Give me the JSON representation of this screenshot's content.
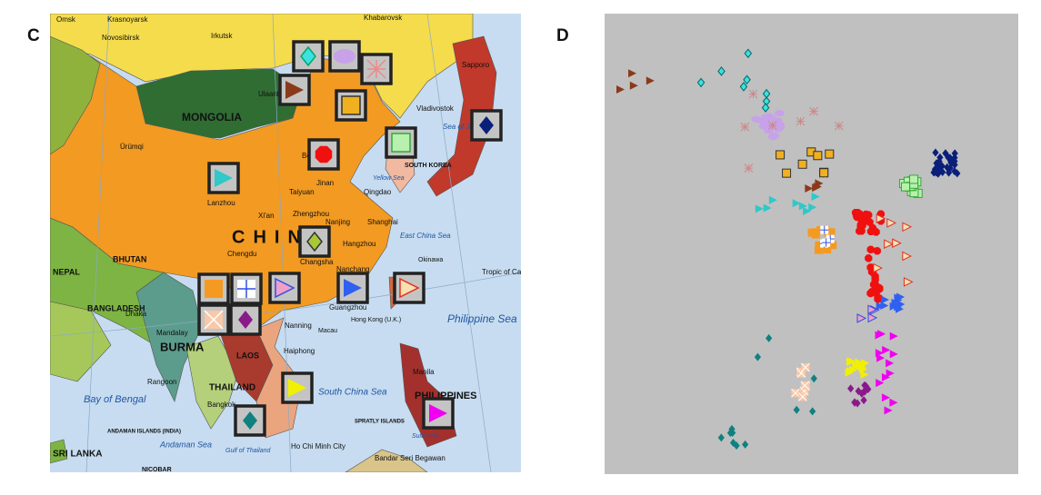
{
  "panels": [
    {
      "label": "C",
      "map_labels": [
        "Omsk",
        "Krasnoyarsk",
        "Novosibirsk",
        "Irkutsk",
        "Khabarovsk",
        "Vladivostok",
        "Sapporo",
        "MONGOLIA",
        "Ulaanbaatar",
        "Ürümqi",
        "Beijing",
        "Lanzhou",
        "Taiyuan",
        "Jinan",
        "Qingdao",
        "Zhengzhou",
        "Xi'an",
        "CHINA",
        "Nanjing",
        "Shanghai",
        "Chengdu",
        "Hangzhou",
        "Changsha",
        "Nanchang",
        "Guangzhou",
        "Hong Kong (U.K.)",
        "Macau",
        "Nanning",
        "Haiphong",
        "NEPAL",
        "BHUTAN",
        "BANGLADESH",
        "Dhaka",
        "Mandalay",
        "BURMA",
        "Rangoon",
        "LAOS",
        "THAILAND",
        "Bangkok",
        "Bay of Bengal",
        "Andaman Sea",
        "South China Sea",
        "Philippine Sea",
        "Manila",
        "PHILIPPINES",
        "Ho Chi Minh City",
        "SRI LANKA",
        "Sea of Japan",
        "Yellow Sea",
        "East China Sea",
        "SOUTH KOREA",
        "Tropic of Cancer",
        "Okinawa",
        "Bandar Seri Begawan",
        "Sulu Sea",
        "Gulf of Thailand",
        "ANDAMAN ISLANDS (INDIA)",
        "NICOBAR",
        "SPRATLY ISLANDS"
      ]
    },
    {
      "label": "D"
    }
  ]
}
